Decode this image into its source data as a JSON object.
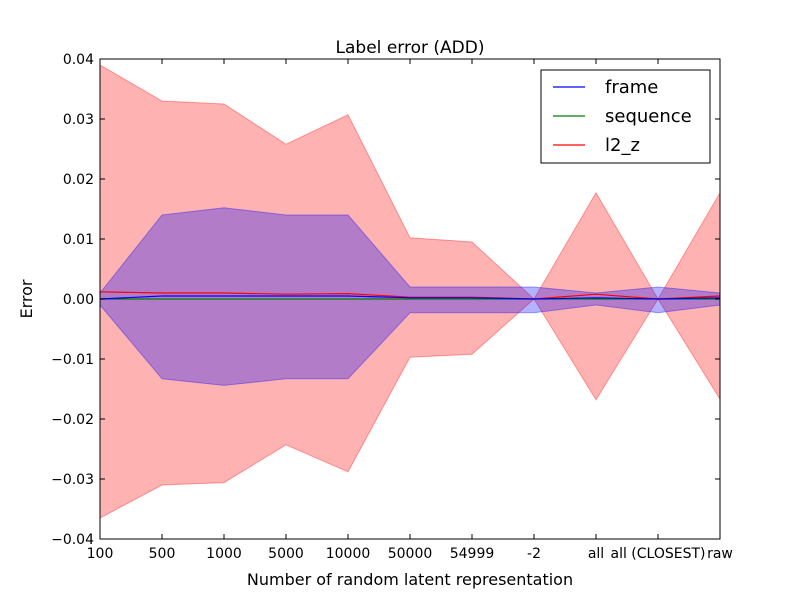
{
  "chart_data": {
    "type": "line",
    "title": "Label error (ADD)",
    "xlabel": "Number of random latent representation",
    "ylabel": "Error",
    "categories": [
      "100",
      "500",
      "1000",
      "5000",
      "10000",
      "50000",
      "54999",
      "-2",
      "all",
      "all (CLOSEST)",
      "raw"
    ],
    "ylim": [
      -0.04,
      0.04
    ],
    "yticks": [
      -0.04,
      -0.03,
      -0.02,
      -0.01,
      0.0,
      0.01,
      0.02,
      0.03,
      0.04
    ],
    "ytick_labels": [
      "−0.04",
      "−0.03",
      "−0.02",
      "−0.01",
      "0.00",
      "0.01",
      "0.02",
      "0.03",
      "0.04"
    ],
    "grid": false,
    "legend_position": "top-right",
    "series": [
      {
        "name": "frame",
        "color": "#0000ff",
        "values": [
          0.0,
          0.0005,
          0.0005,
          0.0005,
          0.0005,
          0.0002,
          0.0002,
          0.0,
          0.0002,
          0.0,
          0.0002
        ],
        "band_lower": [
          -0.001,
          -0.0133,
          -0.0144,
          -0.0133,
          -0.0133,
          -0.0023,
          -0.0023,
          -0.0023,
          -0.001,
          -0.0023,
          -0.001
        ],
        "band_upper": [
          0.001,
          0.014,
          0.0152,
          0.014,
          0.014,
          0.002,
          0.002,
          0.002,
          0.001,
          0.002,
          0.001
        ],
        "band_color": "#0000ff"
      },
      {
        "name": "sequence",
        "color": "#008000",
        "values": [
          0.0,
          0.0,
          0.0,
          0.0,
          0.0,
          0.0,
          0.0,
          0.0,
          0.0,
          0.0,
          0.0
        ],
        "band_lower": [
          0.0,
          0.0,
          0.0,
          0.0,
          0.0,
          0.0,
          0.0,
          0.0,
          0.0,
          0.0,
          0.0
        ],
        "band_upper": [
          0.0,
          0.0,
          0.0,
          0.0,
          0.0,
          0.0,
          0.0,
          0.0,
          0.0,
          0.0,
          0.0
        ],
        "band_color": "#008000"
      },
      {
        "name": "l2_z",
        "color": "#ff0000",
        "values": [
          0.0012,
          0.001,
          0.001,
          0.0008,
          0.0009,
          0.0003,
          0.0003,
          0.0,
          0.0008,
          0.0,
          0.0005
        ],
        "band_lower": [
          -0.0365,
          -0.031,
          -0.0306,
          -0.0243,
          -0.0288,
          -0.0097,
          -0.0092,
          0.0,
          -0.0168,
          0.0,
          -0.0167
        ],
        "band_upper": [
          0.039,
          0.033,
          0.0325,
          0.0258,
          0.0307,
          0.0102,
          0.0095,
          0.0,
          0.0177,
          0.0,
          0.0177
        ],
        "band_color": "#ff0000"
      }
    ]
  }
}
